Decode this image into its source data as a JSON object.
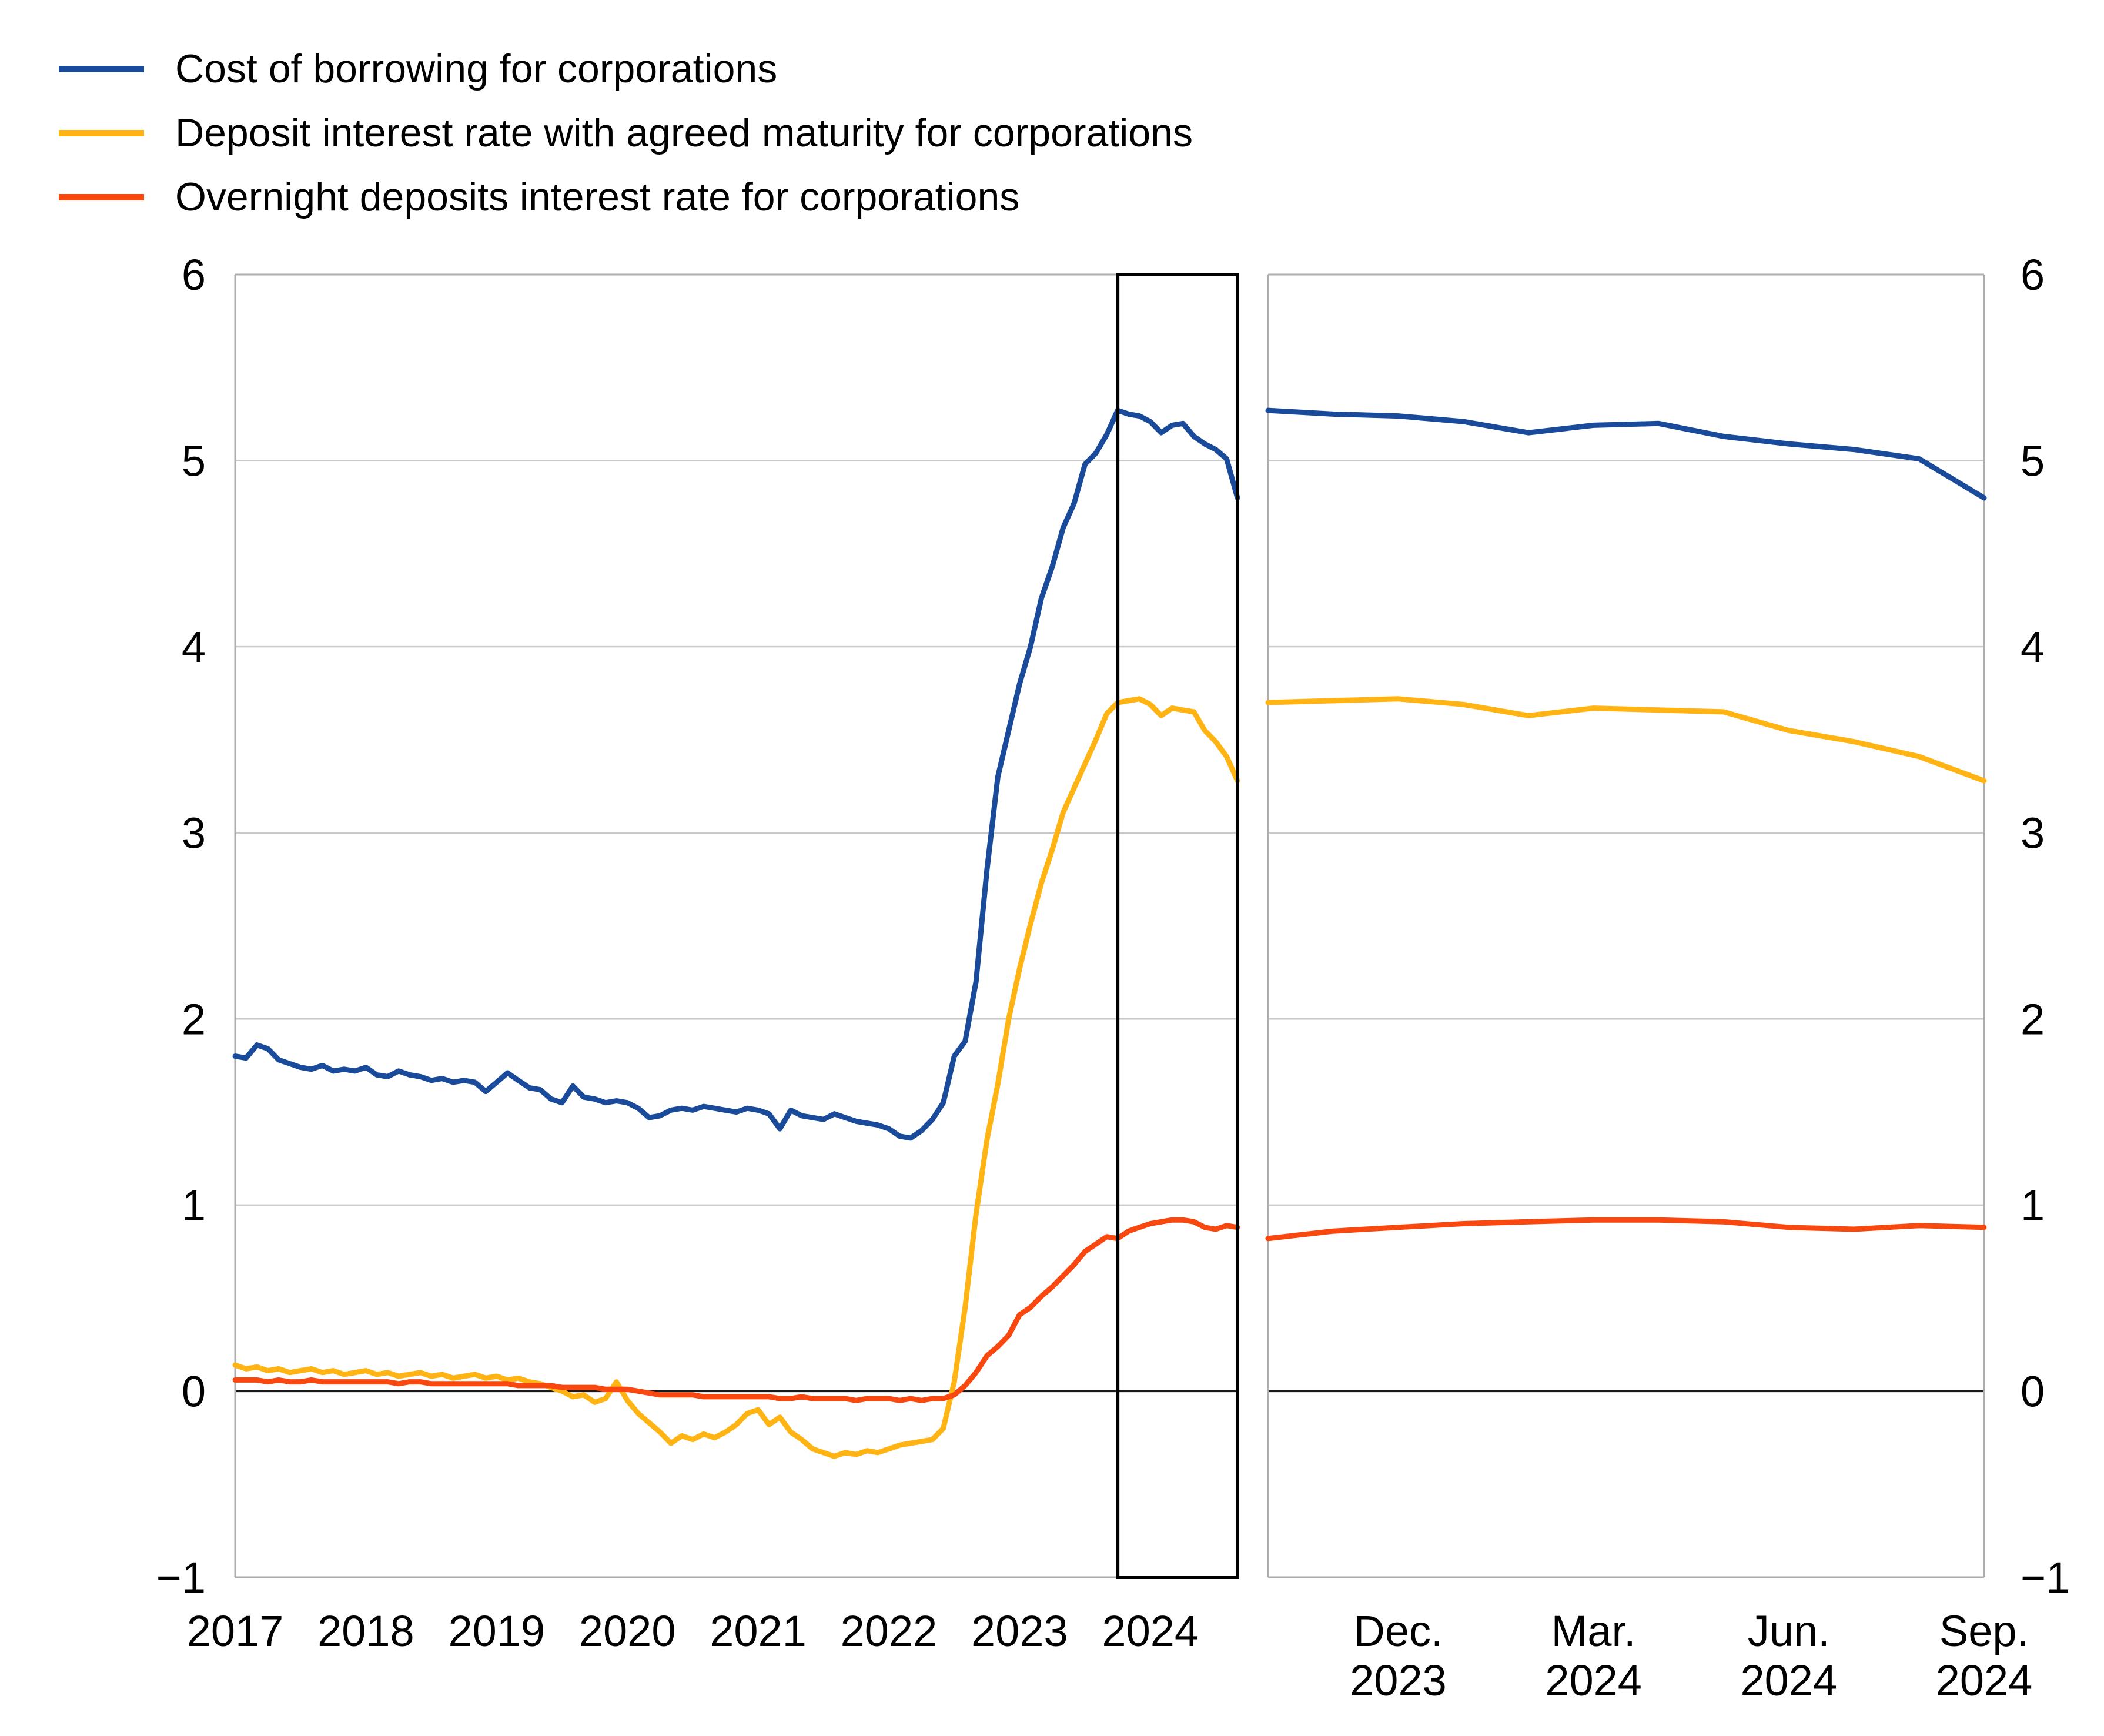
{
  "legend": {
    "items": [
      {
        "label": "Cost of borrowing for corporations",
        "color": "#1A4B9B"
      },
      {
        "label": "Deposit interest rate with agreed maturity for corporations",
        "color": "#FFB414"
      },
      {
        "label": "Overnight deposits interest rate for corporations",
        "color": "#F8470F"
      }
    ]
  },
  "colors": {
    "blue": "#1A4B9B",
    "yellow": "#FFB414",
    "red": "#F8470F",
    "gridline": "#C9C9C9",
    "zero_line": "#1A1A1A",
    "panel_border": "#ADADAD",
    "highlight_box": "#000000",
    "text": "#000000"
  },
  "y_axis": {
    "min": -1,
    "max": 6,
    "tick_labels": [
      "6",
      "5",
      "4",
      "3",
      "2",
      "1",
      "0",
      "−1"
    ],
    "shown_on_left": true,
    "shown_on_right": true
  },
  "chart_data": [
    {
      "type": "line",
      "panel": "left",
      "title": "",
      "xlabel": "",
      "ylabel": "",
      "ylim": [
        -1,
        6
      ],
      "grid": "horizontal",
      "legend_position": "top-left",
      "categories": [
        "2017-01",
        "2017-02",
        "2017-03",
        "2017-04",
        "2017-05",
        "2017-06",
        "2017-07",
        "2017-08",
        "2017-09",
        "2017-10",
        "2017-11",
        "2017-12",
        "2018-01",
        "2018-02",
        "2018-03",
        "2018-04",
        "2018-05",
        "2018-06",
        "2018-07",
        "2018-08",
        "2018-09",
        "2018-10",
        "2018-11",
        "2018-12",
        "2019-01",
        "2019-02",
        "2019-03",
        "2019-04",
        "2019-05",
        "2019-06",
        "2019-07",
        "2019-08",
        "2019-09",
        "2019-10",
        "2019-11",
        "2019-12",
        "2020-01",
        "2020-02",
        "2020-03",
        "2020-04",
        "2020-05",
        "2020-06",
        "2020-07",
        "2020-08",
        "2020-09",
        "2020-10",
        "2020-11",
        "2020-12",
        "2021-01",
        "2021-02",
        "2021-03",
        "2021-04",
        "2021-05",
        "2021-06",
        "2021-07",
        "2021-08",
        "2021-09",
        "2021-10",
        "2021-11",
        "2021-12",
        "2022-01",
        "2022-02",
        "2022-03",
        "2022-04",
        "2022-05",
        "2022-06",
        "2022-07",
        "2022-08",
        "2022-09",
        "2022-10",
        "2022-11",
        "2022-12",
        "2023-01",
        "2023-02",
        "2023-03",
        "2023-04",
        "2023-05",
        "2023-06",
        "2023-07",
        "2023-08",
        "2023-09",
        "2023-10",
        "2023-11",
        "2023-12",
        "2024-01",
        "2024-02",
        "2024-03",
        "2024-04",
        "2024-05",
        "2024-06",
        "2024-07",
        "2024-08",
        "2024-09"
      ],
      "x_tick_labels": [
        "2017",
        "2018",
        "2019",
        "2020",
        "2021",
        "2022",
        "2023",
        "2024"
      ],
      "x_tick_indices": [
        0,
        12,
        24,
        36,
        48,
        60,
        72,
        84
      ],
      "highlight_region": {
        "from": "2023-10",
        "to": "2024-09"
      },
      "series": [
        {
          "name": "Cost of borrowing for corporations",
          "color": "#1A4B9B",
          "values": [
            1.8,
            1.79,
            1.86,
            1.84,
            1.78,
            1.76,
            1.74,
            1.73,
            1.75,
            1.72,
            1.73,
            1.72,
            1.74,
            1.7,
            1.69,
            1.72,
            1.7,
            1.69,
            1.67,
            1.68,
            1.66,
            1.67,
            1.66,
            1.61,
            1.66,
            1.71,
            1.67,
            1.63,
            1.62,
            1.57,
            1.55,
            1.64,
            1.58,
            1.57,
            1.55,
            1.56,
            1.55,
            1.52,
            1.47,
            1.48,
            1.51,
            1.52,
            1.51,
            1.53,
            1.52,
            1.51,
            1.5,
            1.52,
            1.51,
            1.49,
            1.41,
            1.51,
            1.48,
            1.47,
            1.46,
            1.49,
            1.47,
            1.45,
            1.44,
            1.43,
            1.41,
            1.37,
            1.36,
            1.4,
            1.46,
            1.55,
            1.8,
            1.88,
            2.2,
            2.8,
            3.3,
            3.55,
            3.8,
            4.0,
            4.26,
            4.43,
            4.64,
            4.77,
            4.98,
            5.04,
            5.14,
            5.27,
            5.25,
            5.24,
            5.21,
            5.15,
            5.19,
            5.2,
            5.13,
            5.09,
            5.06,
            5.01,
            4.8
          ]
        },
        {
          "name": "Deposit interest rate with agreed maturity for corporations",
          "color": "#FFB414",
          "values": [
            0.14,
            0.12,
            0.13,
            0.11,
            0.12,
            0.1,
            0.11,
            0.12,
            0.1,
            0.11,
            0.09,
            0.1,
            0.11,
            0.09,
            0.1,
            0.08,
            0.09,
            0.1,
            0.08,
            0.09,
            0.07,
            0.08,
            0.09,
            0.07,
            0.08,
            0.06,
            0.07,
            0.05,
            0.04,
            0.02,
            0.0,
            -0.03,
            -0.02,
            -0.06,
            -0.04,
            0.05,
            -0.05,
            -0.12,
            -0.17,
            -0.22,
            -0.28,
            -0.24,
            -0.26,
            -0.23,
            -0.25,
            -0.22,
            -0.18,
            -0.12,
            -0.1,
            -0.18,
            -0.14,
            -0.22,
            -0.26,
            -0.31,
            -0.33,
            -0.35,
            -0.33,
            -0.34,
            -0.32,
            -0.33,
            -0.31,
            -0.29,
            -0.28,
            -0.27,
            -0.26,
            -0.2,
            0.05,
            0.45,
            0.95,
            1.35,
            1.65,
            2.0,
            2.27,
            2.51,
            2.73,
            2.91,
            3.11,
            3.24,
            3.37,
            3.5,
            3.64,
            3.7,
            3.71,
            3.72,
            3.69,
            3.63,
            3.67,
            3.66,
            3.65,
            3.55,
            3.49,
            3.41,
            3.28
          ]
        },
        {
          "name": "Overnight deposits interest rate for corporations",
          "color": "#F8470F",
          "values": [
            0.06,
            0.06,
            0.06,
            0.05,
            0.06,
            0.05,
            0.05,
            0.06,
            0.05,
            0.05,
            0.05,
            0.05,
            0.05,
            0.05,
            0.05,
            0.04,
            0.05,
            0.05,
            0.04,
            0.04,
            0.04,
            0.04,
            0.04,
            0.04,
            0.04,
            0.04,
            0.03,
            0.03,
            0.03,
            0.03,
            0.02,
            0.02,
            0.02,
            0.02,
            0.01,
            0.01,
            0.01,
            0.0,
            -0.01,
            -0.02,
            -0.02,
            -0.02,
            -0.02,
            -0.03,
            -0.03,
            -0.03,
            -0.03,
            -0.03,
            -0.03,
            -0.03,
            -0.04,
            -0.04,
            -0.03,
            -0.04,
            -0.04,
            -0.04,
            -0.04,
            -0.05,
            -0.04,
            -0.04,
            -0.04,
            -0.05,
            -0.04,
            -0.05,
            -0.04,
            -0.04,
            -0.02,
            0.03,
            0.1,
            0.19,
            0.24,
            0.3,
            0.41,
            0.45,
            0.51,
            0.56,
            0.62,
            0.68,
            0.75,
            0.79,
            0.83,
            0.82,
            0.86,
            0.88,
            0.9,
            0.91,
            0.92,
            0.92,
            0.91,
            0.88,
            0.87,
            0.89,
            0.88
          ]
        }
      ]
    },
    {
      "type": "line",
      "panel": "right",
      "title": "",
      "xlabel": "",
      "ylabel": "",
      "ylim": [
        -1,
        6
      ],
      "grid": "horizontal",
      "categories": [
        "2023-10",
        "2023-11",
        "2023-12",
        "2024-01",
        "2024-02",
        "2024-03",
        "2024-04",
        "2024-05",
        "2024-06",
        "2024-07",
        "2024-08",
        "2024-09"
      ],
      "x_tick_labels": [
        [
          "Dec.",
          "2023"
        ],
        [
          "Mar.",
          "2024"
        ],
        [
          "Jun.",
          "2024"
        ],
        [
          "Sep.",
          "2024"
        ]
      ],
      "x_tick_indices": [
        2,
        5,
        8,
        11
      ],
      "series": [
        {
          "name": "Cost of borrowing for corporations",
          "color": "#1A4B9B",
          "values": [
            5.27,
            5.25,
            5.24,
            5.21,
            5.15,
            5.19,
            5.2,
            5.13,
            5.09,
            5.06,
            5.01,
            4.8
          ]
        },
        {
          "name": "Deposit interest rate with agreed maturity for corporations",
          "color": "#FFB414",
          "values": [
            3.7,
            3.71,
            3.72,
            3.69,
            3.63,
            3.67,
            3.66,
            3.65,
            3.55,
            3.49,
            3.41,
            3.28
          ]
        },
        {
          "name": "Overnight deposits interest rate for corporations",
          "color": "#F8470F",
          "values": [
            0.82,
            0.86,
            0.88,
            0.9,
            0.91,
            0.92,
            0.92,
            0.91,
            0.88,
            0.87,
            0.89,
            0.88
          ]
        }
      ]
    }
  ]
}
